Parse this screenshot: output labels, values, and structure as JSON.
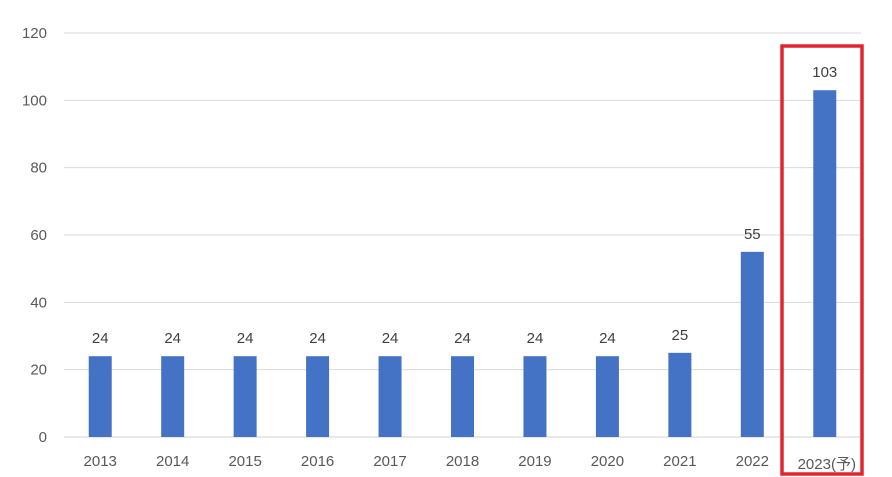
{
  "chart_data": {
    "type": "bar",
    "categories": [
      "2013",
      "2014",
      "2015",
      "2016",
      "2017",
      "2018",
      "2019",
      "2020",
      "2021",
      "2022",
      "2023(予)"
    ],
    "values": [
      24,
      24,
      24,
      24,
      24,
      24,
      24,
      24,
      25,
      55,
      103
    ],
    "data_labels": [
      "24",
      "24",
      "24",
      "24",
      "24",
      "24",
      "24",
      "24",
      "25",
      "55",
      "103"
    ],
    "yticks": [
      0,
      20,
      40,
      60,
      80,
      100,
      120
    ],
    "ylim": [
      0,
      120
    ],
    "grid": true,
    "legend": "none",
    "highlight_category": "2023(予)",
    "colors": {
      "bar": "#4472c4",
      "highlight": "#e3262d",
      "grid": "#d9d9d9",
      "text": "#595959"
    }
  }
}
